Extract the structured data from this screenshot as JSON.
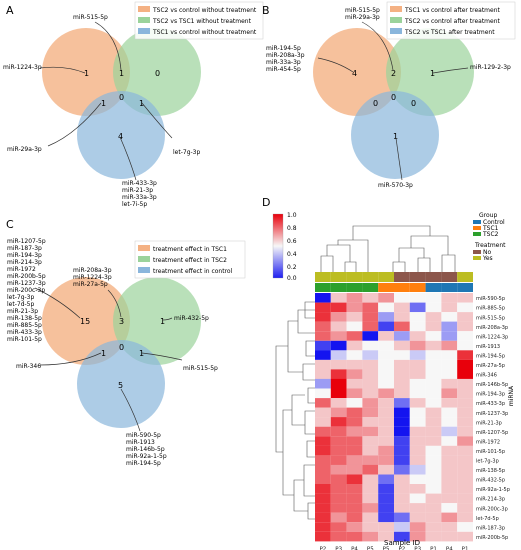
{
  "panels": {
    "A": {
      "label": "A",
      "legend": [
        "TSC2 vs control without treatment",
        "TSC2 vs TSC1 without treatment",
        "TSC1 vs control without treatment"
      ],
      "counts": {
        "only1": "1",
        "one_two": "1",
        "only2": "0",
        "center": "0",
        "one_three": "1",
        "two_three": "1",
        "only3": "4"
      },
      "annotations": {
        "top": "miR-515-5p",
        "left": "miR-1224-3p",
        "bottom_left": "miR-29a-3p",
        "right": "let-7g-3p",
        "bottom": [
          "miR-433-3p",
          "miR-21-3p",
          "miR-33a-3p",
          "let-7i-5p"
        ]
      }
    },
    "B": {
      "label": "B",
      "legend": [
        "TSC1 vs control after treatment",
        "TSC2 vs control after treatment",
        "TSC2 vs TSC1 after treatment"
      ],
      "counts": {
        "only1": "4",
        "one_two": "2",
        "only2": "1",
        "center": "0",
        "one_three": "0",
        "two_three": "0",
        "only3": "1"
      },
      "annotations": {
        "top": [
          "miR-515-5p",
          "miR-29a-3p"
        ],
        "left": [
          "miR-194-5p",
          "miR-208a-3p",
          "miR-33a-3p",
          "miR-454-5p"
        ],
        "right": "miR-129-2-3p",
        "bottom": "miR-570-3p"
      }
    },
    "C": {
      "label": "C",
      "legend": [
        "treatment effect in TSC1",
        "treatment effect in TSC2",
        "treatment effect in control"
      ],
      "counts": {
        "only1": "15",
        "one_two": "3",
        "only2": "1",
        "center": "0",
        "one_three": "1",
        "two_three": "1",
        "only3": "5"
      },
      "annotations": {
        "left_list": [
          "miR-1207-5p",
          "miR-187-3p",
          "miR-194-3p",
          "miR-214-3p",
          "miR-1972",
          "miR-200b-5p",
          "miR-1237-3p",
          "miR-200c-3p",
          "let-7g-3p",
          "let-7d-5p",
          "miR-21-3p",
          "miR-138-5p",
          "miR-885-5p",
          "miR-433-3p",
          "miR-101-5p"
        ],
        "top": [
          "miR-208a-3p",
          "miR-1224-3p",
          "miR-27a-5p"
        ],
        "right": "miR-432-5p",
        "bottom_left": "miR-346",
        "bottom_right": "miR-515-5p",
        "bottom": [
          "miR-590-5p",
          "miR-1913",
          "miR-146b-5p",
          "miR-92a-1-5p",
          "miR-194-5p"
        ]
      }
    },
    "D": {
      "label": "D",
      "colorbar_ticks": [
        "1.0",
        "0.8",
        "0.6",
        "0.4",
        "0.2",
        "0.0"
      ],
      "legend_group_title": "Group",
      "legend_groups": [
        {
          "name": "Control",
          "color": "#1f77b4"
        },
        {
          "name": "TSC1",
          "color": "#ff7f0e"
        },
        {
          "name": "TSC2",
          "color": "#2ca02c"
        }
      ],
      "legend_treatment_title": "Treatment",
      "legend_treatment": [
        {
          "name": "No",
          "color": "#8c564b"
        },
        {
          "name": "Yes",
          "color": "#bcbd22"
        }
      ],
      "row_labels": [
        "miR-590-5p",
        "miR-885-5p",
        "miR-515-5p",
        "miR-208a-3p",
        "miR-1224-3p",
        "miR-1913",
        "miR-194-5p",
        "miR-27a-5p",
        "miR-346",
        "miR-146b-5p",
        "miR-194-3p",
        "miR-433-3p",
        "miR-1237-3p",
        "miR-21-3p",
        "miR-1207-5p",
        "miR-1972",
        "miR-101-5p",
        "let-7g-3p",
        "miR-138-5p",
        "miR-432-5p",
        "miR-92a-1-5p",
        "miR-214-3p",
        "miR-200c-3p",
        "let-7d-5p",
        "miR-187-3p",
        "miR-200b-5p"
      ],
      "col_labels": [
        "P2",
        "P3",
        "P4",
        "P5",
        "P5",
        "P2",
        "P3",
        "P1",
        "P4",
        "P1"
      ],
      "row_axis_title": "miRNA",
      "col_axis_title": "Sample ID",
      "group_colors": [
        "#bcbd22",
        "#bcbd22",
        "#bcbd22",
        "#bcbd22",
        "#bcbd22",
        "#8c564b",
        "#8c564b",
        "#8c564b",
        "#8c564b",
        "#bcbd22"
      ],
      "treatment_colors": [
        "#2ca02c",
        "#2ca02c",
        "#2ca02c",
        "#2ca02c",
        "#ff7f0e",
        "#ff7f0e",
        "#ff7f0e",
        "#1f77b4",
        "#1f77b4",
        "#1f77b4"
      ],
      "matrix": [
        [
          0.0,
          0.6,
          0.7,
          0.6,
          0.7,
          0.5,
          0.5,
          0.5,
          0.6,
          0.6
        ],
        [
          0.9,
          0.9,
          0.7,
          0.8,
          0.5,
          0.6,
          0.2,
          0.5,
          0.6,
          0.5
        ],
        [
          0.9,
          0.7,
          0.6,
          0.8,
          0.3,
          0.6,
          0.5,
          0.6,
          0.5,
          0.6
        ],
        [
          0.8,
          0.6,
          0.5,
          0.8,
          0.1,
          0.8,
          0.5,
          0.6,
          0.3,
          0.6
        ],
        [
          0.8,
          0.7,
          0.8,
          0.0,
          0.6,
          0.3,
          0.6,
          0.5,
          0.3,
          0.5
        ],
        [
          0.1,
          0.0,
          0.6,
          0.5,
          0.5,
          0.6,
          0.7,
          0.6,
          0.7,
          0.5
        ],
        [
          0.0,
          0.4,
          0.5,
          0.4,
          0.5,
          0.5,
          0.4,
          0.5,
          0.5,
          0.9
        ],
        [
          0.6,
          0.6,
          0.6,
          0.6,
          0.5,
          0.6,
          0.6,
          0.5,
          0.5,
          1.0
        ],
        [
          0.6,
          0.9,
          0.7,
          0.6,
          0.5,
          0.6,
          0.6,
          0.5,
          0.5,
          1.0
        ],
        [
          0.3,
          1.0,
          0.6,
          0.6,
          0.5,
          0.6,
          0.5,
          0.5,
          0.6,
          0.6
        ],
        [
          0.5,
          1.0,
          0.7,
          0.6,
          0.7,
          0.6,
          0.5,
          0.5,
          0.7,
          0.6
        ],
        [
          0.8,
          0.6,
          0.5,
          0.7,
          0.6,
          0.2,
          0.6,
          0.5,
          0.6,
          0.6
        ],
        [
          0.6,
          0.7,
          0.8,
          0.7,
          0.6,
          0.0,
          0.5,
          0.6,
          0.5,
          0.6
        ],
        [
          0.6,
          0.9,
          0.8,
          0.6,
          0.6,
          0.0,
          0.5,
          0.6,
          0.5,
          0.6
        ],
        [
          0.8,
          0.8,
          0.7,
          0.7,
          0.6,
          0.0,
          0.6,
          0.6,
          0.4,
          0.6
        ],
        [
          0.9,
          0.8,
          0.8,
          0.6,
          0.6,
          0.1,
          0.6,
          0.6,
          0.5,
          0.7
        ],
        [
          0.9,
          0.8,
          0.8,
          0.6,
          0.7,
          0.1,
          0.6,
          0.5,
          0.6,
          0.6
        ],
        [
          0.8,
          0.8,
          0.7,
          0.7,
          0.7,
          0.1,
          0.6,
          0.5,
          0.6,
          0.6
        ],
        [
          0.8,
          0.7,
          0.7,
          0.8,
          0.6,
          0.2,
          0.4,
          0.5,
          0.6,
          0.6
        ],
        [
          0.8,
          0.8,
          0.9,
          0.6,
          0.2,
          0.6,
          0.5,
          0.5,
          0.6,
          0.6
        ],
        [
          0.9,
          0.8,
          0.8,
          0.6,
          0.1,
          0.6,
          0.6,
          0.5,
          0.6,
          0.6
        ],
        [
          0.9,
          0.8,
          0.8,
          0.6,
          0.1,
          0.6,
          0.5,
          0.6,
          0.6,
          0.6
        ],
        [
          0.9,
          0.8,
          0.8,
          0.7,
          0.1,
          0.6,
          0.6,
          0.6,
          0.5,
          0.6
        ],
        [
          0.9,
          0.7,
          0.8,
          0.6,
          0.1,
          0.2,
          0.6,
          0.6,
          0.7,
          0.6
        ],
        [
          0.9,
          0.8,
          0.7,
          0.6,
          0.6,
          0.4,
          0.7,
          0.6,
          0.6,
          0.5
        ],
        [
          0.9,
          0.8,
          0.8,
          0.7,
          0.6,
          0.1,
          0.7,
          0.6,
          0.6,
          0.6
        ]
      ]
    }
  }
}
